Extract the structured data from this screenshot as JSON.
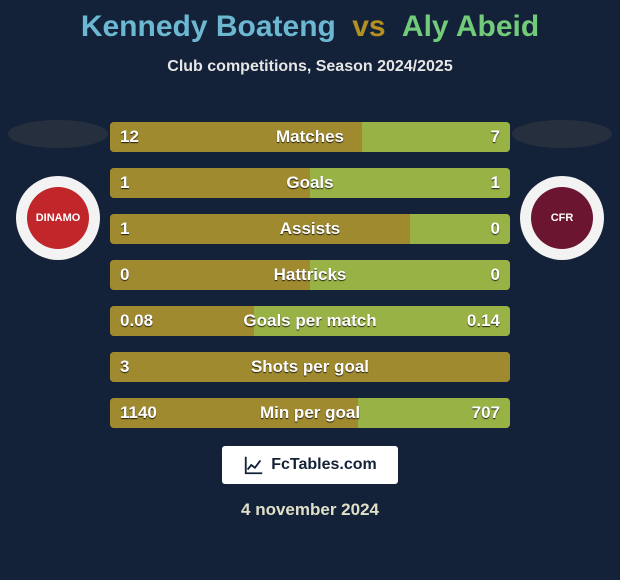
{
  "colors": {
    "background": "#132238",
    "title_p1": "#6cb8d2",
    "title_vs": "#b39020",
    "title_p2": "#71cb79",
    "subtitle": "#e6e6e6",
    "row_text": "#ffffff",
    "left_seg": "#a08a2f",
    "right_seg": "#99b246",
    "footer_bg": "#ffffff",
    "footer_text": "#132238",
    "date_text": "#e0dfc8",
    "shadow_ellipse": "#262f3d",
    "logo_left_outer": "#f3f3f3",
    "logo_left_inner": "#c0262a",
    "logo_left_text": "#ffffff",
    "logo_right_outer": "#f3f3f3",
    "logo_right_inner": "#6b1531",
    "logo_right_text": "#ffffff"
  },
  "title": {
    "p1": "Kennedy Boateng",
    "vs": "vs",
    "p2": "Aly Abeid"
  },
  "subtitle": "Club competitions, Season 2024/2025",
  "rows": [
    {
      "label": "Matches",
      "left_val": "12",
      "right_val": "7",
      "left_pct": 63,
      "right_pct": 37
    },
    {
      "label": "Goals",
      "left_val": "1",
      "right_val": "1",
      "left_pct": 50,
      "right_pct": 50
    },
    {
      "label": "Assists",
      "left_val": "1",
      "right_val": "0",
      "left_pct": 75,
      "right_pct": 25
    },
    {
      "label": "Hattricks",
      "left_val": "0",
      "right_val": "0",
      "left_pct": 50,
      "right_pct": 50
    },
    {
      "label": "Goals per match",
      "left_val": "0.08",
      "right_val": "0.14",
      "left_pct": 36,
      "right_pct": 64
    },
    {
      "label": "Shots per goal",
      "left_val": "3",
      "right_val": "",
      "left_pct": 100,
      "right_pct": 0
    },
    {
      "label": "Min per goal",
      "left_val": "1140",
      "right_val": "707",
      "left_pct": 62,
      "right_pct": 38
    }
  ],
  "team_left_short": "DINAMO",
  "team_right_short": "CFR",
  "footer_text": "FcTables.com",
  "date": "4 november 2024"
}
